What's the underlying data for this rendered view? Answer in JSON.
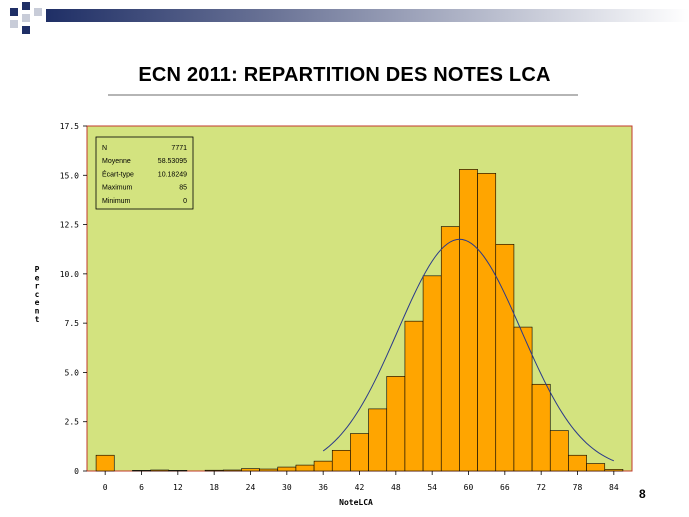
{
  "slide": {
    "title": "ECN 2011: REPARTITION DES NOTES LCA",
    "page_number": "8"
  },
  "colors": {
    "plot_background": "#d3e37f",
    "plot_border": "#c0392b",
    "bar_fill": "#ffa500",
    "bar_stroke": "#000000",
    "curve": "#2b3a8a",
    "deco_dark": "#1f2f66",
    "deco_light": "#c8ccd8"
  },
  "stats_box": {
    "rows": [
      {
        "label": "N",
        "value": "7771"
      },
      {
        "label": "Moyenne",
        "value": "58.53095"
      },
      {
        "label": "Écart-type",
        "value": "10.18249"
      },
      {
        "label": "Maximum",
        "value": "85"
      },
      {
        "label": "Minimum",
        "value": "0"
      }
    ]
  },
  "chart_data": {
    "type": "bar",
    "title": "",
    "xlabel": "NoteLCA",
    "ylabel": "Percent",
    "xlim": [
      -3,
      87
    ],
    "ylim": [
      0,
      17.5
    ],
    "x_ticks": [
      "0",
      "6",
      "12",
      "18",
      "24",
      "30",
      "36",
      "42",
      "48",
      "54",
      "60",
      "66",
      "72",
      "78",
      "84"
    ],
    "y_ticks": [
      "0",
      "2.5",
      "5.0",
      "7.5",
      "10.0",
      "12.5",
      "15.0",
      "17.5"
    ],
    "bin_width": 3,
    "bins": [
      {
        "x": 0,
        "value": 0.8
      },
      {
        "x": 6,
        "value": 0.03
      },
      {
        "x": 9,
        "value": 0.05
      },
      {
        "x": 12,
        "value": 0.03
      },
      {
        "x": 18,
        "value": 0.04
      },
      {
        "x": 21,
        "value": 0.05
      },
      {
        "x": 24,
        "value": 0.12
      },
      {
        "x": 27,
        "value": 0.1
      },
      {
        "x": 30,
        "value": 0.2
      },
      {
        "x": 33,
        "value": 0.3
      },
      {
        "x": 36,
        "value": 0.5
      },
      {
        "x": 39,
        "value": 1.05
      },
      {
        "x": 42,
        "value": 1.9
      },
      {
        "x": 45,
        "value": 3.15
      },
      {
        "x": 48,
        "value": 4.8
      },
      {
        "x": 51,
        "value": 7.6
      },
      {
        "x": 54,
        "value": 9.9
      },
      {
        "x": 57,
        "value": 12.4
      },
      {
        "x": 60,
        "value": 15.3
      },
      {
        "x": 63,
        "value": 15.1
      },
      {
        "x": 66,
        "value": 11.5
      },
      {
        "x": 69,
        "value": 7.3
      },
      {
        "x": 72,
        "value": 4.4
      },
      {
        "x": 75,
        "value": 2.05
      },
      {
        "x": 78,
        "value": 0.8
      },
      {
        "x": 81,
        "value": 0.38
      },
      {
        "x": 84,
        "value": 0.08
      }
    ],
    "normal_curve": {
      "mean": 58.53095,
      "std": 10.18249,
      "x_range": [
        36,
        84
      ]
    },
    "grid": false,
    "legend": "none"
  }
}
